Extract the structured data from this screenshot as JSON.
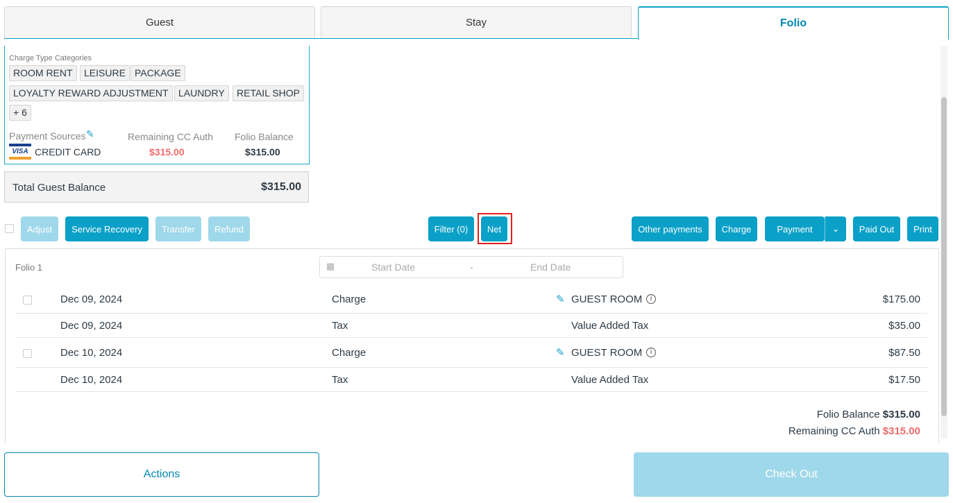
{
  "tabs": [
    "Guest",
    "Stay",
    "Folio"
  ],
  "summary": {
    "charge_type_label": "Charge Type Categories",
    "categories": [
      "ROOM RENT",
      "LEISURE",
      "PACKAGE",
      "LOYALTY REWARD ADJUSTMENT",
      "LAUNDRY",
      "RETAIL SHOP",
      "+ 6"
    ],
    "payment_sources_label": "Payment Sources",
    "remaining_cc_label": "Remaining CC Auth",
    "folio_balance_label": "Folio Balance",
    "card_brand": "VISA",
    "payment_method": "CREDIT CARD",
    "remaining_cc": "$315.00",
    "folio_balance": "$315.00"
  },
  "total": {
    "label": "Total Guest Balance",
    "value": "$315.00"
  },
  "toolbar": {
    "adjust": "Adjust",
    "service_recovery": "Service Recovery",
    "transfer": "Transfer",
    "refund": "Refund",
    "filter": "Filter (0)",
    "net": "Net",
    "other_payments": "Other payments",
    "charge": "Charge",
    "payment": "Payment",
    "paid_out": "Paid Out",
    "print": "Print"
  },
  "folio": {
    "name": "Folio 1",
    "start_placeholder": "Start Date",
    "end_placeholder": "End Date",
    "separator": "-",
    "rows": [
      {
        "date": "Dec 09, 2024",
        "type": "Charge",
        "desc": "GUEST ROOM",
        "amount": "$175.00",
        "editable": true
      },
      {
        "date": "Dec 09, 2024",
        "type": "Tax",
        "desc": "Value Added Tax",
        "amount": "$35.00",
        "editable": false
      },
      {
        "date": "Dec 10, 2024",
        "type": "Charge",
        "desc": "GUEST ROOM",
        "amount": "$87.50",
        "editable": true
      },
      {
        "date": "Dec 10, 2024",
        "type": "Tax",
        "desc": "Value Added Tax",
        "amount": "$17.50",
        "editable": false
      }
    ],
    "balance_label": "Folio Balance",
    "balance": "$315.00",
    "remaining_label": "Remaining CC Auth",
    "remaining": "$315.00"
  },
  "footer": {
    "actions": "Actions",
    "checkout": "Check Out"
  },
  "colors": {
    "accent": "#0aa0c8",
    "negative": "#f06a6a"
  }
}
